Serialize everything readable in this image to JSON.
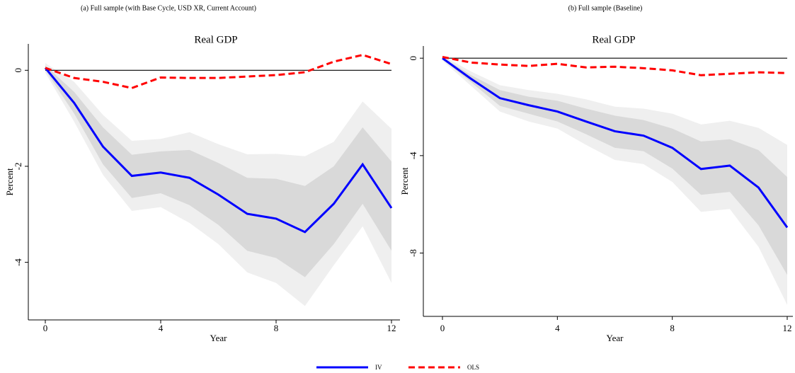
{
  "chart_data": [
    {
      "type": "line",
      "subtitle": "(a) Full sample  (with Base Cycle, USD XR, Current Account)",
      "title": "Real GDP",
      "x_label": "Year",
      "y_label": "Percent",
      "x": [
        0,
        1,
        2,
        3,
        4,
        5,
        6,
        7,
        8,
        9,
        10,
        11,
        12
      ],
      "xlim": [
        0,
        12
      ],
      "xticks": [
        0,
        4,
        8,
        12
      ],
      "ylim": [
        -5.2,
        0.55
      ],
      "yticks": [
        0,
        -2,
        -4
      ],
      "reference_line": 0,
      "bands": [
        {
          "color": "#efefef",
          "upper": [
            0.15,
            -0.24,
            -0.93,
            -1.47,
            -1.43,
            -1.29,
            -1.54,
            -1.75,
            -1.74,
            -1.79,
            -1.49,
            -0.65,
            -1.22
          ],
          "lower": [
            -0.05,
            -1.07,
            -2.18,
            -2.93,
            -2.85,
            -3.18,
            -3.62,
            -4.21,
            -4.43,
            -4.91,
            -4.06,
            -3.25,
            -4.43
          ]
        },
        {
          "color": "#d9d9d9",
          "upper": [
            0.1,
            -0.45,
            -1.19,
            -1.76,
            -1.69,
            -1.66,
            -1.93,
            -2.24,
            -2.26,
            -2.41,
            -2.0,
            -1.19,
            -1.9
          ],
          "lower": [
            0.0,
            -0.9,
            -1.96,
            -2.66,
            -2.56,
            -2.81,
            -3.22,
            -3.76,
            -3.91,
            -4.31,
            -3.62,
            -2.78,
            -3.76
          ]
        }
      ],
      "series": [
        {
          "name": "IV",
          "color": "#0000ff",
          "dashed": false,
          "values": [
            0.05,
            -0.68,
            -1.59,
            -2.2,
            -2.13,
            -2.24,
            -2.59,
            -2.99,
            -3.09,
            -3.37,
            -2.78,
            -1.96,
            -2.87
          ]
        },
        {
          "name": "OLS",
          "color": "#ff0000",
          "dashed": true,
          "values": [
            0.05,
            -0.16,
            -0.24,
            -0.37,
            -0.15,
            -0.16,
            -0.16,
            -0.13,
            -0.1,
            -0.04,
            0.18,
            0.32,
            0.13
          ]
        }
      ]
    },
    {
      "type": "line",
      "subtitle": "(b) Full sample (Baseline)",
      "title": "Real GDP",
      "x_label": "Year",
      "y_label": "Percent",
      "x": [
        0,
        1,
        2,
        3,
        4,
        5,
        6,
        7,
        8,
        9,
        10,
        11,
        12
      ],
      "xlim": [
        0,
        12
      ],
      "xticks": [
        0,
        4,
        8,
        12
      ],
      "ylim": [
        -10.6,
        0.5
      ],
      "yticks": [
        0,
        -4,
        -8
      ],
      "reference_line": 0,
      "bands": [
        {
          "color": "#efefef",
          "upper": [
            0.1,
            -0.55,
            -1.11,
            -1.31,
            -1.46,
            -1.69,
            -1.99,
            -2.07,
            -2.28,
            -2.72,
            -2.57,
            -2.86,
            -3.56
          ],
          "lower": [
            -0.1,
            -1.14,
            -2.19,
            -2.6,
            -2.89,
            -3.56,
            -4.18,
            -4.35,
            -5.08,
            -6.31,
            -6.19,
            -7.74,
            -10.13
          ]
        },
        {
          "color": "#d9d9d9",
          "upper": [
            0.05,
            -0.7,
            -1.31,
            -1.58,
            -1.75,
            -2.07,
            -2.36,
            -2.54,
            -2.89,
            -3.42,
            -3.33,
            -3.77,
            -4.88
          ],
          "lower": [
            -0.05,
            -0.99,
            -1.96,
            -2.28,
            -2.6,
            -3.12,
            -3.68,
            -3.82,
            -4.53,
            -5.61,
            -5.49,
            -6.86,
            -8.9
          ]
        }
      ],
      "series": [
        {
          "name": "IV",
          "color": "#0000ff",
          "dashed": false,
          "values": [
            0,
            -0.85,
            -1.64,
            -1.93,
            -2.19,
            -2.6,
            -3.0,
            -3.18,
            -3.68,
            -4.55,
            -4.41,
            -5.31,
            -6.95
          ]
        },
        {
          "name": "OLS",
          "color": "#ff0000",
          "dashed": true,
          "values": [
            0.05,
            -0.18,
            -0.26,
            -0.32,
            -0.23,
            -0.38,
            -0.35,
            -0.41,
            -0.5,
            -0.7,
            -0.64,
            -0.58,
            -0.61
          ]
        }
      ]
    }
  ]
}
